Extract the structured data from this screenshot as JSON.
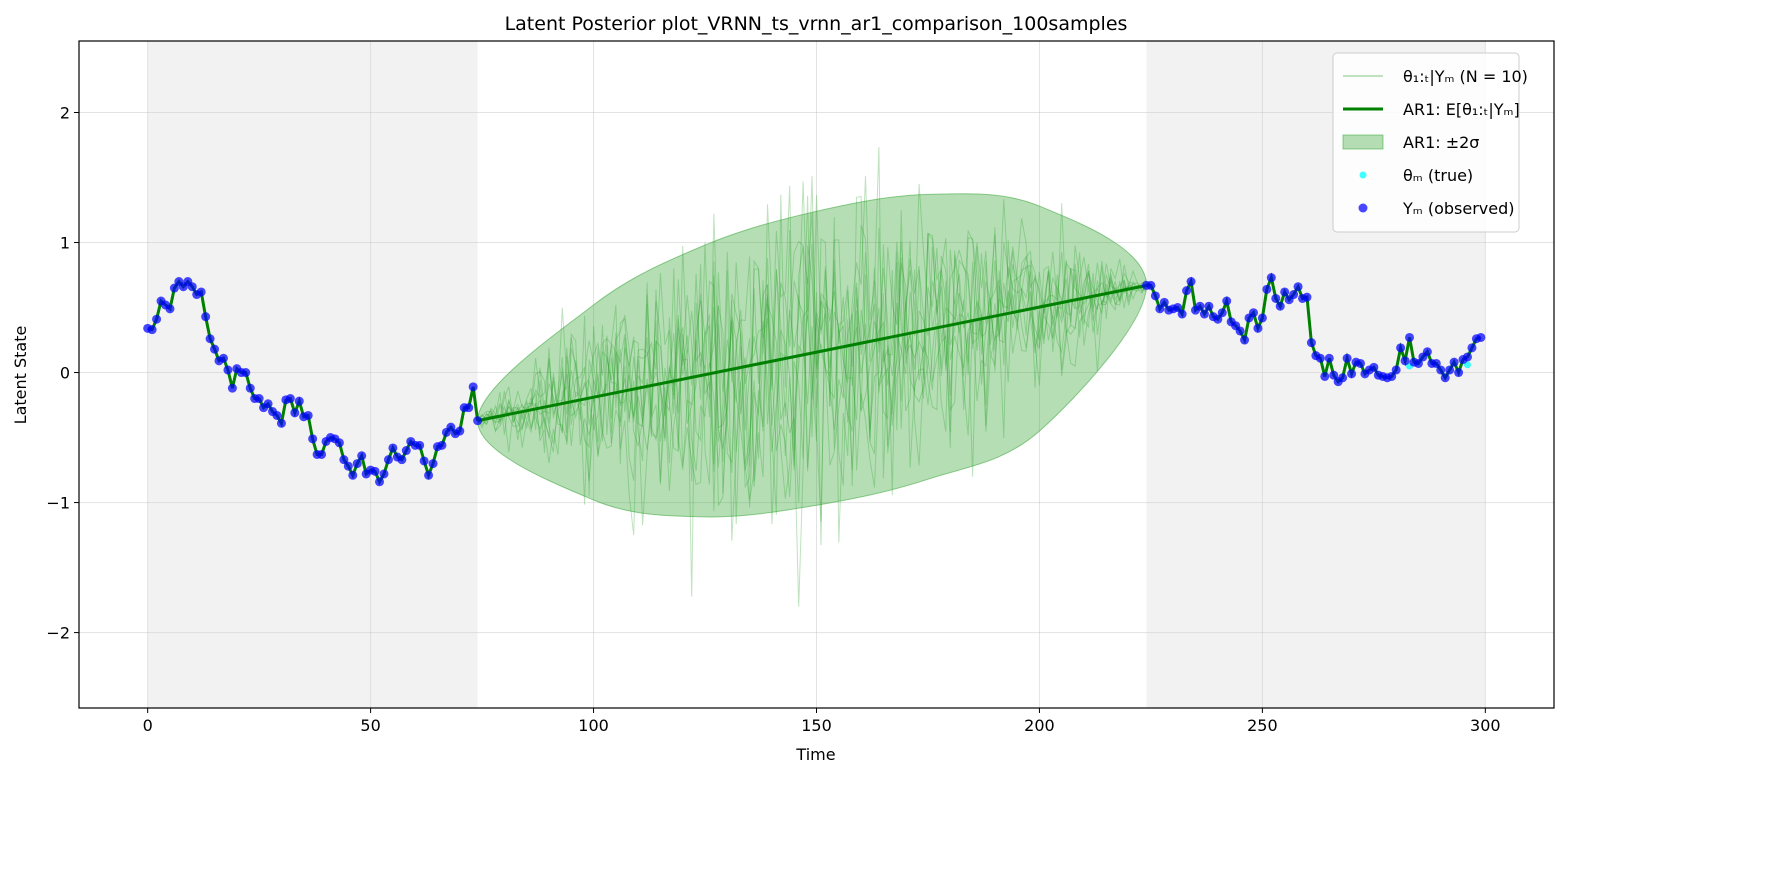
{
  "chart_data": {
    "type": "line",
    "title": "Latent Posterior plot_VRNN_ts_vrnn_ar1_comparison_100samples",
    "xlabel": "Time",
    "ylabel": "Latent State",
    "xlim": [
      -15.4,
      315.4
    ],
    "ylim": [
      -2.58,
      2.55
    ],
    "xticks": [
      0,
      50,
      100,
      150,
      200,
      250,
      300
    ],
    "yticks": [
      -2,
      -1,
      0,
      1,
      2
    ],
    "xtick_labels": [
      "0",
      "50",
      "100",
      "150",
      "200",
      "250",
      "300"
    ],
    "ytick_labels": [
      "−2",
      "−1",
      "0",
      "1",
      "2"
    ],
    "grid": true,
    "legend_position": "top-right",
    "observed_regions": [
      [
        0,
        74
      ],
      [
        224,
        300
      ]
    ],
    "missing_region": [
      74,
      224
    ],
    "colors": {
      "samples": "#2ca02c",
      "mean": "#008000",
      "band": "#2ca02c",
      "true": "#00ffff",
      "observed": "#0000ff",
      "shade": "#d3d3d3"
    },
    "legend": [
      {
        "key": "samples",
        "label": "θ₁:ₜ|Yₘ (N = 10)"
      },
      {
        "key": "mean",
        "label": "AR1: E[θ₁:ₜ|Yₘ]"
      },
      {
        "key": "band",
        "label": "AR1: ±2σ"
      },
      {
        "key": "true",
        "label": "θₘ (true)"
      },
      {
        "key": "observed",
        "label": "Yₘ (observed)"
      }
    ],
    "series": [
      {
        "name": "AR1: E[θ₁:ₜ|Yₘ]",
        "type": "line",
        "x": [
          74,
          224
        ],
        "y": [
          -0.37,
          0.67
        ]
      },
      {
        "name": "AR1: ±2σ",
        "type": "band",
        "x": [
          74,
          100,
          125,
          150,
          175,
          200,
          224
        ],
        "lower": [
          -0.37,
          -0.98,
          -1.11,
          -1.02,
          -0.82,
          -0.45,
          0.67
        ],
        "upper": [
          -0.37,
          0.52,
          0.98,
          1.24,
          1.37,
          1.28,
          0.67
        ]
      },
      {
        "name": "θₘ (true)",
        "type": "scatter",
        "x": [
          283,
          296
        ],
        "y": [
          0.05,
          0.06
        ]
      },
      {
        "name": "θ₁:ₜ|Yₘ (N = 10)",
        "type": "sample_lines",
        "count": 10,
        "x_range": [
          74,
          224
        ],
        "y_range": [
          -2.33,
          2.32
        ]
      }
    ],
    "observed": {
      "x_start": 0,
      "y": [
        0.34,
        0.33,
        0.41,
        0.55,
        0.52,
        0.49,
        0.65,
        0.7,
        0.66,
        0.7,
        0.66,
        0.6,
        0.62,
        0.43,
        0.26,
        0.18,
        0.09,
        0.11,
        0.02,
        -0.12,
        0.03,
        0.0,
        0.0,
        -0.12,
        -0.2,
        -0.2,
        -0.27,
        -0.24,
        -0.3,
        -0.33,
        -0.39,
        -0.21,
        -0.2,
        -0.31,
        -0.22,
        -0.34,
        -0.33,
        -0.51,
        -0.63,
        -0.63,
        -0.53,
        -0.5,
        -0.51,
        -0.54,
        -0.67,
        -0.72,
        -0.79,
        -0.7,
        -0.64,
        -0.78,
        -0.75,
        -0.76,
        -0.84,
        -0.78,
        -0.67,
        -0.58,
        -0.65,
        -0.67,
        -0.6,
        -0.53,
        -0.56,
        -0.56,
        -0.68,
        -0.79,
        -0.7,
        -0.57,
        -0.56,
        -0.46,
        -0.42,
        -0.47,
        -0.45,
        -0.27,
        -0.27,
        -0.11,
        -0.37
      ],
      "x2_start": 224,
      "y2": [
        0.67,
        0.67,
        0.59,
        0.49,
        0.54,
        0.48,
        0.49,
        0.5,
        0.45,
        0.63,
        0.7,
        0.48,
        0.51,
        0.45,
        0.51,
        0.43,
        0.41,
        0.46,
        0.55,
        0.39,
        0.36,
        0.32,
        0.25,
        0.42,
        0.46,
        0.34,
        0.42,
        0.64,
        0.73,
        0.57,
        0.51,
        0.62,
        0.56,
        0.6,
        0.66,
        0.57,
        0.58,
        0.23,
        0.13,
        0.11,
        -0.03,
        0.11,
        -0.02,
        -0.07,
        -0.04,
        0.11,
        -0.01,
        0.08,
        0.07,
        -0.01,
        0.02,
        0.04,
        -0.02,
        -0.03,
        -0.04,
        -0.03,
        0.02,
        0.19,
        0.09,
        0.27,
        0.08,
        0.07,
        0.12,
        0.16,
        0.07,
        0.07,
        0.02,
        -0.04,
        0.02,
        0.08,
        0.0,
        0.1,
        0.12,
        0.19,
        0.26,
        0.27
      ]
    }
  }
}
